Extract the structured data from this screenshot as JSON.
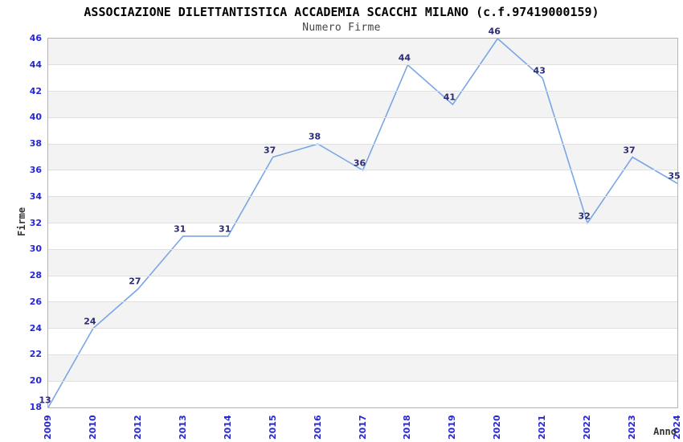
{
  "chart_data": {
    "type": "line",
    "title": "ASSOCIAZIONE DILETTANTISTICA ACCADEMIA SCACCHI MILANO (c.f.97419000159)",
    "subtitle": "Numero Firme",
    "xlabel": "Anno",
    "ylabel": "Firme",
    "categories": [
      "2009",
      "2010",
      "2012",
      "2013",
      "2014",
      "2015",
      "2016",
      "2017",
      "2018",
      "2019",
      "2020",
      "2021",
      "2022",
      "2023",
      "2024"
    ],
    "values": [
      13,
      24,
      27,
      31,
      31,
      37,
      38,
      36,
      44,
      41,
      46,
      43,
      32,
      37,
      35
    ],
    "ylim": [
      18,
      46
    ],
    "ytick_step": 2,
    "grid": true,
    "legend": "none",
    "value_labels_shown": true,
    "notes": "first value 13 is below y-axis minimum and is clipped at the plot bottom-left corner",
    "colors": {
      "line": "#79a6e4",
      "tick_labels": "#2626d9",
      "value_labels": "#2b2b77",
      "band": "#f3f3f3",
      "gridline": "#e0e0e0",
      "plot_border": "#b4b4b4",
      "title": "#000000",
      "subtitle": "#444444",
      "axis_titles": "#333333"
    }
  }
}
